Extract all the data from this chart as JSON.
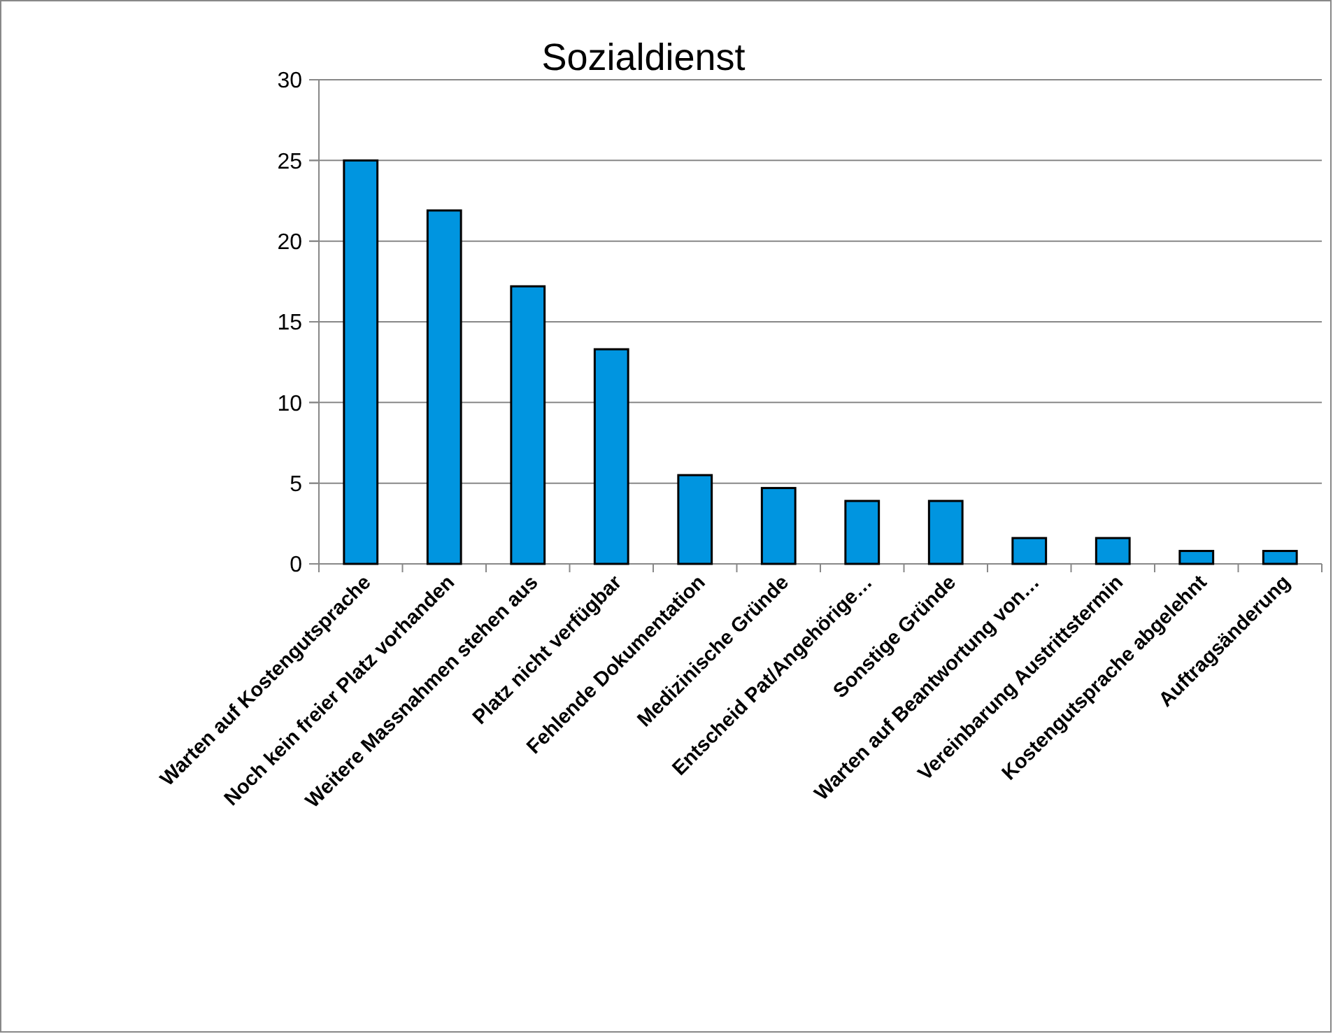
{
  "chart_data": {
    "type": "bar",
    "title": "Sozialdienst",
    "categories": [
      "Warten auf Kostengutsprache",
      "Noch kein freier Platz vorhanden",
      "Weitere Massnahmen stehen aus",
      "Platz nicht verfügbar",
      "Fehlende Dokumentation",
      "Medizinische Gründe",
      "Entscheid Pat/Angehörige…",
      "Sonstige Gründe",
      "Warten auf Beantwortung von…",
      "Vereinbarung Austrittstermin",
      "Kostengutsprache abgelehnt",
      "Auftragsänderung"
    ],
    "values": [
      25,
      21.9,
      17.2,
      13.3,
      5.5,
      4.7,
      3.9,
      3.9,
      1.6,
      1.6,
      0.8,
      0.8
    ],
    "color": "#0095e0",
    "ylim": [
      0,
      30
    ],
    "yticks": [
      0,
      5,
      10,
      15,
      20,
      25,
      30
    ],
    "grid": "y"
  }
}
